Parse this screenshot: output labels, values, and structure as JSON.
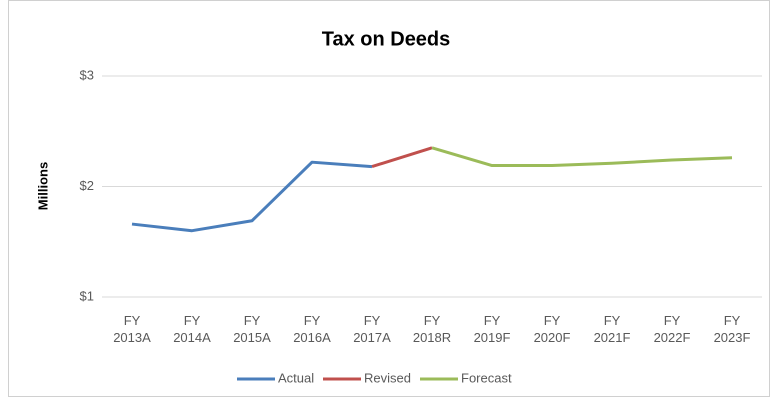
{
  "chart_data": {
    "type": "line",
    "title": "Tax on Deeds",
    "y_label": "Millions",
    "categories": [
      "FY 2013A",
      "FY 2014A",
      "FY 2015A",
      "FY 2016A",
      "FY 2017A",
      "FY 2018R",
      "FY 2019F",
      "FY 2020F",
      "FY 2021F",
      "FY 2022F",
      "FY 2023F"
    ],
    "series": [
      {
        "name": "Actual",
        "color": "#4a7ebb",
        "values": [
          1.66,
          1.6,
          1.69,
          2.22,
          2.18,
          null,
          null,
          null,
          null,
          null,
          null
        ]
      },
      {
        "name": "Revised",
        "color": "#c0504d",
        "values": [
          null,
          null,
          null,
          null,
          2.18,
          2.35,
          null,
          null,
          null,
          null,
          null
        ]
      },
      {
        "name": "Forecast",
        "color": "#9bbb59",
        "values": [
          null,
          null,
          null,
          null,
          null,
          2.35,
          2.19,
          2.19,
          2.21,
          2.24,
          2.26
        ]
      }
    ],
    "ylim": [
      1,
      3
    ],
    "yticks": [
      {
        "value": 1,
        "label": "$1"
      },
      {
        "value": 2,
        "label": "$2"
      },
      {
        "value": 3,
        "label": "$3"
      }
    ],
    "grid": true,
    "legend": "bottom"
  }
}
